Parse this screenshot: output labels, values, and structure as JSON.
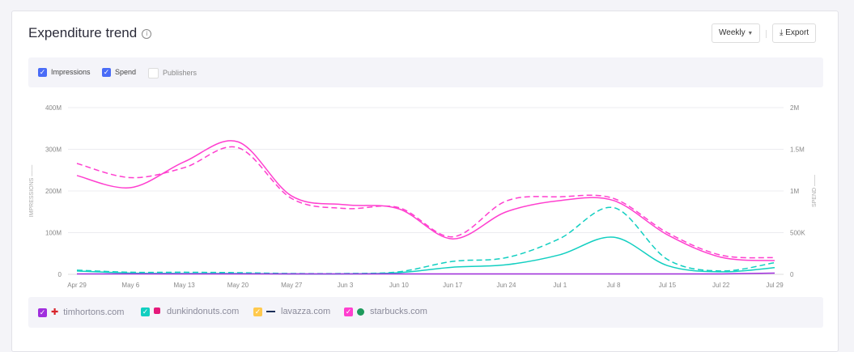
{
  "header": {
    "title": "Expenditure trend",
    "info_icon": "info-icon",
    "period": "Weekly",
    "export": "Export"
  },
  "filters": [
    {
      "label": "Impressions",
      "checked": true
    },
    {
      "label": "Spend",
      "checked": true
    },
    {
      "label": "Publishers",
      "checked": false
    }
  ],
  "legend": [
    {
      "label": "timhortons.com",
      "color": "#a02fdd",
      "icon": "maple-leaf-icon"
    },
    {
      "label": "dunkindonuts.com",
      "color": "#12cfc1",
      "icon": "dunkin-icon"
    },
    {
      "label": "lavazza.com",
      "color": "#ffc94d",
      "icon": "lavazza-icon"
    },
    {
      "label": "starbucks.com",
      "color": "#ff3fcf",
      "icon": "starbucks-icon"
    }
  ],
  "chart_data": {
    "type": "line",
    "categories": [
      "Apr 29",
      "May 6",
      "May 13",
      "May 20",
      "May 27",
      "Jun 3",
      "Jun 10",
      "Jun 17",
      "Jun 24",
      "Jul 1",
      "Jul 8",
      "Jul 15",
      "Jul 22",
      "Jul 29"
    ],
    "ylabel": "IMPRESSIONS",
    "y2label": "SPEND",
    "ylim": [
      0,
      400000000
    ],
    "y2lim": [
      0,
      2000000
    ],
    "yticks": [
      "0",
      "100M",
      "200M",
      "300M",
      "400M"
    ],
    "y2ticks": [
      "0",
      "500K",
      "1M",
      "1.5M",
      "2M"
    ],
    "grid": true,
    "series": [
      {
        "name": "starbucks.com",
        "metric": "impressions",
        "style": "solid",
        "color": "#ff3fcf",
        "values": [
          237000000.0,
          208000000.0,
          270000000.0,
          318000000.0,
          188000000.0,
          167000000.0,
          157000000.0,
          85000000.0,
          150000000.0,
          177000000.0,
          177000000.0,
          95000000.0,
          41000000.0,
          33000000.0
        ]
      },
      {
        "name": "starbucks.com",
        "metric": "spend",
        "style": "dashed",
        "color": "#ff3fcf",
        "values": [
          1330000,
          1160000,
          1280000,
          1520000,
          910000,
          790000,
          800000,
          450000,
          880000,
          930000,
          910000,
          500000,
          230000,
          200000
        ]
      },
      {
        "name": "dunkindonuts.com",
        "metric": "impressions",
        "style": "solid",
        "color": "#12cfc1",
        "values": [
          8000000.0,
          3000000.0,
          2000000.0,
          2000000.0,
          1000000.0,
          1000000.0,
          4000000.0,
          17000000.0,
          23000000.0,
          47000000.0,
          89000000.0,
          21000000.0,
          6000000.0,
          16000000.0
        ]
      },
      {
        "name": "dunkindonuts.com",
        "metric": "spend",
        "style": "dashed",
        "color": "#12cfc1",
        "values": [
          50000,
          25000,
          25000,
          20000,
          10000,
          10000,
          30000,
          155000,
          200000,
          430000,
          800000,
          180000,
          40000,
          140000
        ]
      },
      {
        "name": "timhortons.com",
        "metric": "impressions",
        "style": "solid",
        "color": "#a02fdd",
        "values": [
          1000000.0,
          1000000.0,
          1000000.0,
          1000000.0,
          1000000.0,
          1000000.0,
          1000000.0,
          1000000.0,
          1000000.0,
          1000000.0,
          1000000.0,
          1000000.0,
          1000000.0,
          3000000.0
        ]
      }
    ]
  }
}
